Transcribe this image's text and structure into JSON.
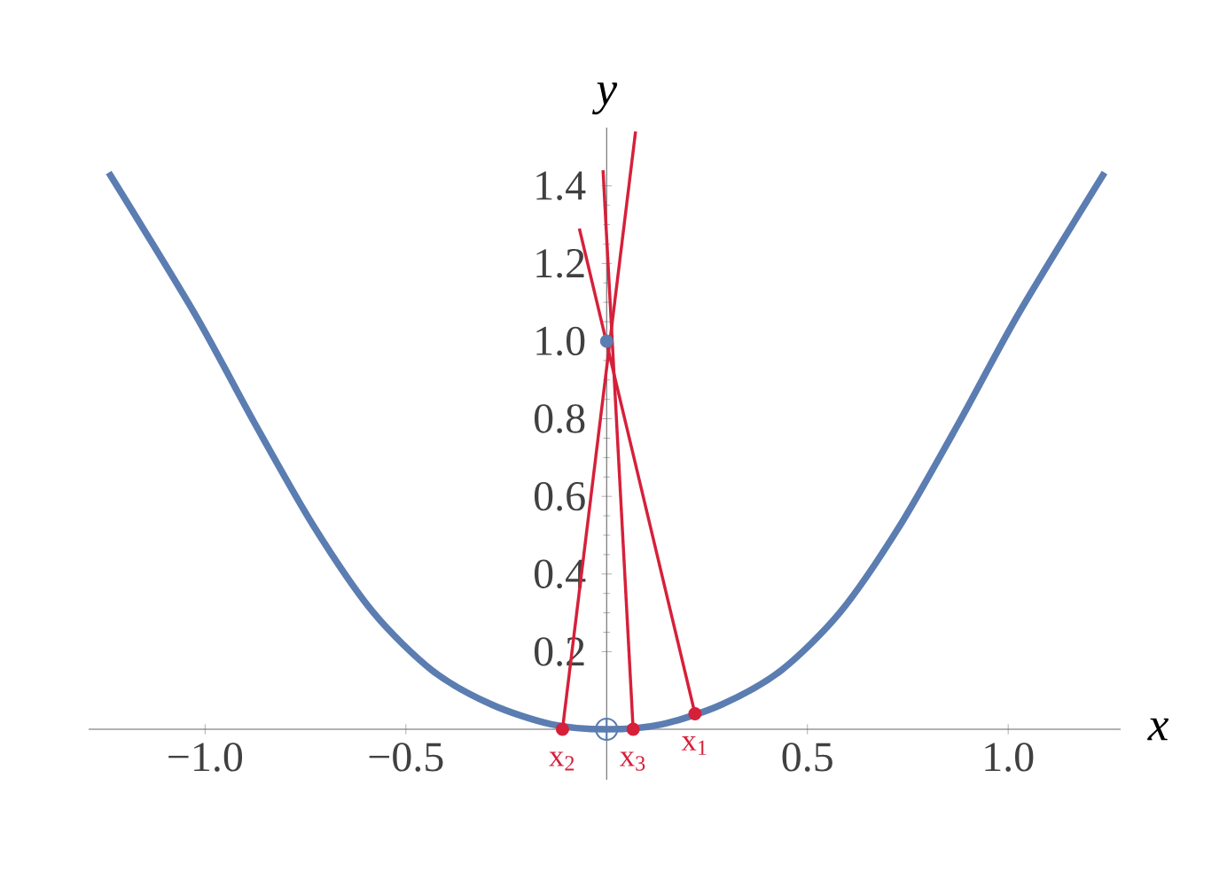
{
  "chart_data": {
    "type": "line",
    "xlabel": "x",
    "ylabel": "y",
    "xlim": [
      -1.29,
      1.28
    ],
    "ylim": [
      -0.13,
      1.55
    ],
    "xticks": [
      {
        "value": -1.0,
        "label": "−1.0"
      },
      {
        "value": -0.5,
        "label": "−0.5"
      },
      {
        "value": 0.5,
        "label": "0.5"
      },
      {
        "value": 1.0,
        "label": "1.0"
      }
    ],
    "yticks": [
      0.2,
      0.4,
      0.6,
      0.8,
      {
        "value": 1.0,
        "label": "1.0"
      },
      1.2,
      1.4
    ],
    "grid": false,
    "series": [
      {
        "color": "#5b7db1",
        "marker": "none",
        "x": [
          -1.24,
          -1.026,
          -0.878,
          -0.73,
          -0.582,
          -0.435,
          -0.287,
          -0.138,
          0,
          0.138,
          0.287,
          0.435,
          0.582,
          0.73,
          0.878,
          1.026,
          1.24
        ],
        "values": [
          1.434,
          1.071,
          0.791,
          0.524,
          0.302,
          0.152,
          0.064,
          0.013,
          0,
          0.013,
          0.064,
          0.152,
          0.302,
          0.524,
          0.791,
          1.071,
          1.434
        ]
      },
      {
        "color": "#d6203a",
        "marker": "none",
        "x": [
          0.22,
          -0.068
        ],
        "values": [
          0.04,
          1.29
        ]
      },
      {
        "color": "#d6203a",
        "marker": "none",
        "x": [
          -0.11,
          0.072
        ],
        "values": [
          0,
          1.54
        ]
      },
      {
        "color": "#d6203a",
        "marker": "none",
        "x": [
          0.066,
          -0.009
        ],
        "values": [
          0,
          1.44
        ]
      },
      {
        "type": "scatter",
        "color": "#d6203a",
        "marker": "circle",
        "x": [
          0.22,
          -0.11,
          0.066
        ],
        "values": [
          0.04,
          0,
          0
        ]
      },
      {
        "type": "scatter",
        "color": "#5b7db1",
        "marker": "circle",
        "x": [
          0
        ],
        "values": [
          1.0
        ]
      },
      {
        "type": "scatter",
        "color": "#5b7db1",
        "marker": "cross",
        "x": [
          0
        ],
        "values": [
          0
        ]
      }
    ],
    "annotations": [
      {
        "text": "x$_{1}$",
        "x": 0.22,
        "y": 0.04
      },
      {
        "text": "x$_{2}$",
        "x": -0.11,
        "y": 0
      },
      {
        "text": "x$_{3}$",
        "x": 0.066,
        "y": 0
      }
    ]
  }
}
